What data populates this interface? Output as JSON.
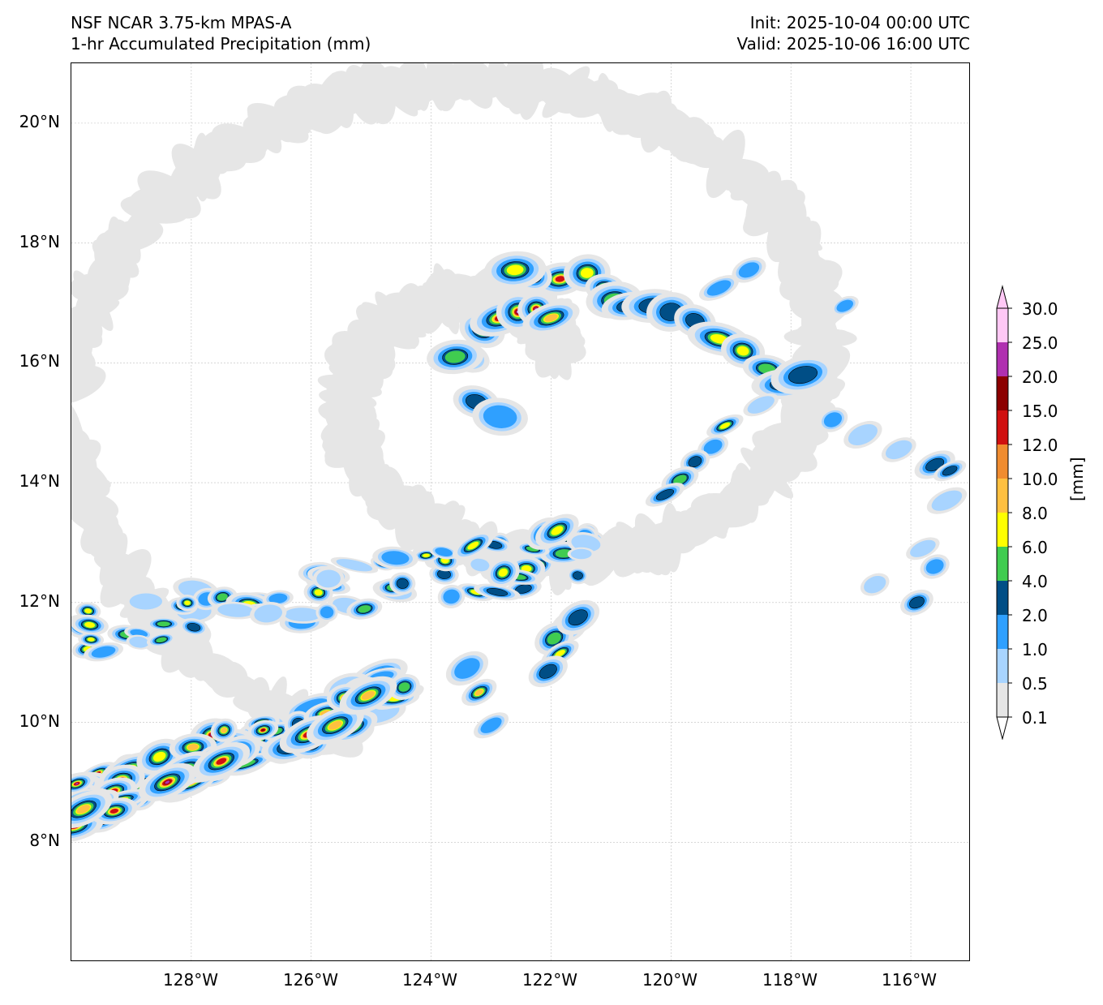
{
  "title": {
    "line1": "NSF NCAR 3.75-km MPAS-A",
    "line2": "1-hr Accumulated Precipitation (mm)",
    "init": "Init: 2025-10-04 00:00 UTC",
    "valid": "Valid: 2025-10-06 16:00 UTC"
  },
  "map": {
    "lat_labels": [
      "20°N",
      "18°N",
      "16°N",
      "14°N",
      "12°N",
      "10°N",
      "8°N"
    ],
    "lon_labels": [
      "128°W",
      "126°W",
      "124°W",
      "122°W",
      "120°W",
      "118°W",
      "116°W"
    ],
    "extent": {
      "lon_min": -130,
      "lon_max": -115,
      "lat_min": 6,
      "lat_max": 21
    },
    "gridlines": true
  },
  "colorbar": {
    "label": "[mm]",
    "levels": [
      "30.0",
      "25.0",
      "20.0",
      "15.0",
      "12.0",
      "10.0",
      "8.0",
      "6.0",
      "4.0",
      "2.0",
      "1.0",
      "0.5",
      "0.1"
    ],
    "colors": [
      "#ffc8f5",
      "#b030b0",
      "#8c0000",
      "#d01010",
      "#f08c30",
      "#ffc040",
      "#ffff00",
      "#40cc50",
      "#004e86",
      "#2fa0ff",
      "#a8d4ff",
      "#e6e6e6"
    ]
  }
}
